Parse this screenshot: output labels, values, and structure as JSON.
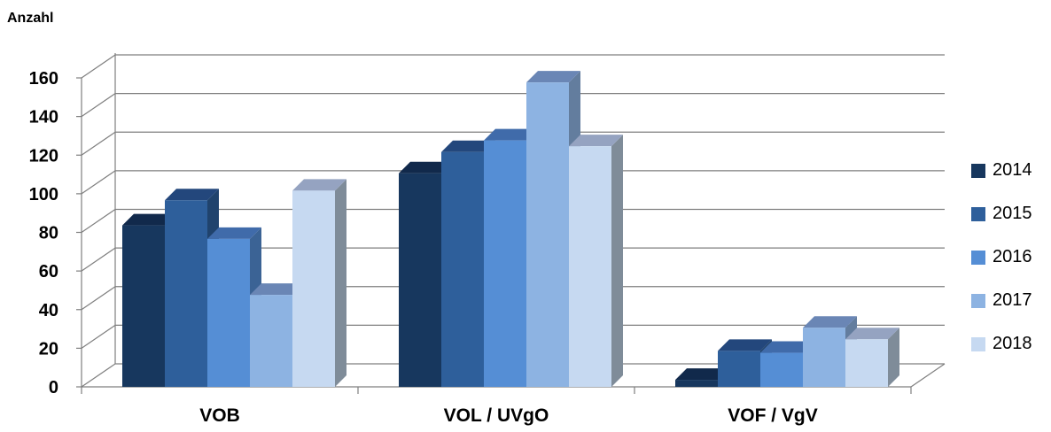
{
  "chart_data": {
    "type": "bar",
    "ylabel": "Anzahl",
    "ylim": [
      0,
      160
    ],
    "yticks": [
      0,
      20,
      40,
      60,
      80,
      100,
      120,
      140,
      160
    ],
    "categories": [
      "VOB",
      "VOL / UVgO",
      "VOF / VgV"
    ],
    "series": [
      {
        "name": "2014",
        "color": "#17375e",
        "values": [
          85,
          112,
          5
        ]
      },
      {
        "name": "2015",
        "color": "#2e5f9b",
        "values": [
          98,
          123,
          20
        ]
      },
      {
        "name": "2016",
        "color": "#558ed5",
        "values": [
          78,
          129,
          19
        ]
      },
      {
        "name": "2017",
        "color": "#8db3e2",
        "values": [
          49,
          159,
          32
        ]
      },
      {
        "name": "2018",
        "color": "#c6d9f1",
        "values": [
          103,
          126,
          26
        ]
      }
    ],
    "grid": true,
    "legend": "right",
    "style": "3d-clustered-column"
  }
}
